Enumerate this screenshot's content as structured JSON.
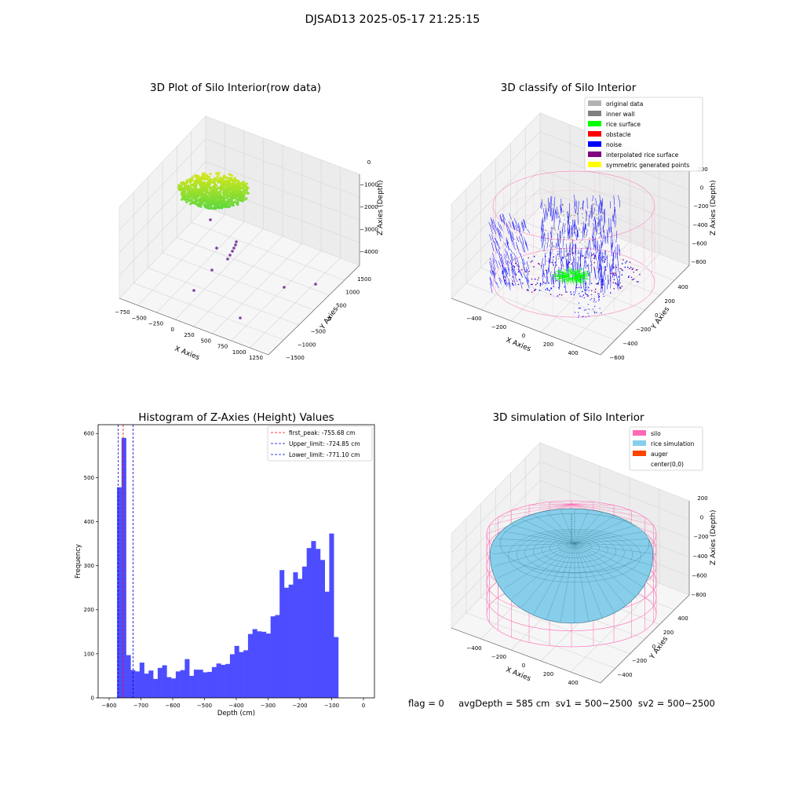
{
  "figure": {
    "title": "DJSAD13 2025-05-17 21:25:15",
    "footer": "flag = 0     avgDepth = 585 cm  sv1 = 500~2500  sv2 = 500~2500"
  },
  "colors": {
    "histogram_bar": "#4d4dff",
    "first_peak": "#ff0000",
    "limits": "#0000cc",
    "silo": "#ff69b4",
    "rice_simulation": "#87ceeb",
    "auger": "#ff4500",
    "noise": "#0000ff",
    "rice_surface": "#00ff00",
    "obstacle": "#ff0000",
    "inner_wall": "#808080",
    "original_data": "#b3b3b3",
    "interpolated": "#800080",
    "symmetric": "#ffff00"
  },
  "chart_data": [
    {
      "type": "scatter",
      "title": "3D Plot of Silo Interior(row data)",
      "xlabel": "X Axies",
      "ylabel": "Y Axies",
      "zlabel": "Z Axies (Depth)",
      "x_ticks": [
        "−750",
        "−500",
        "−250",
        "0",
        "250",
        "500",
        "750",
        "1000",
        "1250"
      ],
      "y_ticks": [
        "1500",
        "1000",
        "500",
        "0",
        "−500",
        "−1000",
        "−1500"
      ],
      "z_ticks": [
        "0",
        "−1000",
        "−2000",
        "−3000",
        "−4000"
      ]
    },
    {
      "type": "scatter",
      "title": "3D classify of Silo Interior",
      "xlabel": "X Axies",
      "ylabel": "Y Axies",
      "zlabel": "Z Axies (Depth)",
      "x_ticks": [
        "−400",
        "−200",
        "0",
        "200",
        "400"
      ],
      "y_ticks": [
        "400",
        "200",
        "0",
        "−200",
        "−400",
        "−600"
      ],
      "z_ticks": [
        "200",
        "0",
        "−200",
        "−400",
        "−600",
        "−800"
      ],
      "legend": [
        {
          "label": "original data",
          "color": "#b3b3b3"
        },
        {
          "label": "inner wall",
          "color": "#808080"
        },
        {
          "label": "rice surface",
          "color": "#00ff00"
        },
        {
          "label": "obstacle",
          "color": "#ff0000"
        },
        {
          "label": "noise",
          "color": "#0000ff"
        },
        {
          "label": "interpolated rice surface",
          "color": "#800080"
        },
        {
          "label": "symmetric generated points",
          "color": "#ffff00"
        }
      ]
    },
    {
      "type": "bar",
      "title": "Histogram of Z-Axies (Height) Values",
      "xlabel": "Depth (cm)",
      "ylabel": "Frequency",
      "xlim": [
        -800,
        0
      ],
      "ylim": [
        0,
        620
      ],
      "x_ticks": [
        -800,
        -700,
        -600,
        -500,
        -400,
        -300,
        -200,
        -100,
        0
      ],
      "y_ticks": [
        0,
        100,
        200,
        300,
        400,
        500,
        600
      ],
      "bin_start": -775,
      "bin_width": 14.2,
      "values": [
        478,
        590,
        97,
        63,
        60,
        80,
        55,
        62,
        43,
        68,
        74,
        47,
        44,
        60,
        63,
        88,
        50,
        64,
        64,
        58,
        59,
        70,
        78,
        75,
        77,
        99,
        118,
        104,
        108,
        145,
        156,
        151,
        150,
        146,
        185,
        188,
        290,
        250,
        257,
        285,
        270,
        298,
        340,
        356,
        338,
        313,
        241,
        373,
        138
      ],
      "legend": [
        {
          "label": "first_peak: -755.68 cm",
          "value": -755.68,
          "color": "#ff0000"
        },
        {
          "label": "Upper_limit: -724.85 cm",
          "value": -724.85,
          "color": "#0000cc"
        },
        {
          "label": "Lower_limit: -771.10 cm",
          "value": -771.1,
          "color": "#0000cc"
        }
      ]
    },
    {
      "type": "scatter",
      "title": "3D simulation of Silo Interior",
      "xlabel": "X Axies",
      "ylabel": "Y Axies",
      "zlabel": "Z Axies (Depth)",
      "x_ticks": [
        "−400",
        "−200",
        "0",
        "200",
        "400"
      ],
      "y_ticks": [
        "400",
        "200",
        "0",
        "−200",
        "−400"
      ],
      "z_ticks": [
        "200",
        "0",
        "−200",
        "−400",
        "−600",
        "−800"
      ],
      "legend": [
        {
          "label": "silo",
          "color": "#ff69b4"
        },
        {
          "label": "rice simulation",
          "color": "#87ceeb"
        },
        {
          "label": "auger",
          "color": "#ff4500"
        },
        {
          "label": "center(0,0)",
          "color": ""
        }
      ]
    }
  ]
}
